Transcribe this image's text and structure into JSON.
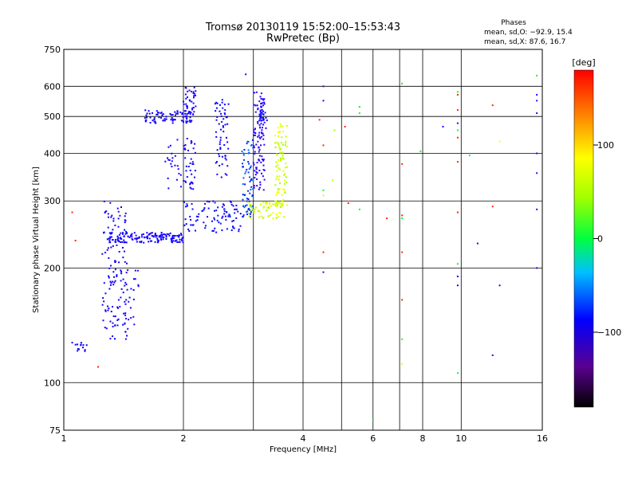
{
  "chart_data": {
    "type": "scatter",
    "title": "Tromsø 20130119 15:52:00–15:53:43",
    "subtitle": "RwPretec (Bp)",
    "phase_title": "Phases",
    "phase_line1": "mean, sd,O: −92.9, 15.4",
    "phase_line2": "mean, sd,X:  87.6, 16.7",
    "xlabel": "Frequency [MHz]",
    "ylabel": "Stationary phase Virtual Height [km]",
    "xscale": "log",
    "yscale": "log",
    "xlim": [
      1,
      16
    ],
    "ylim": [
      75,
      750
    ],
    "xticks": [
      1,
      2,
      4,
      6,
      8,
      10,
      16
    ],
    "xtick_labels": [
      "1",
      "2",
      "4",
      "6",
      "8",
      "10",
      "16"
    ],
    "xgrid": [
      1,
      2,
      3,
      4,
      5,
      6,
      7,
      8,
      10,
      16
    ],
    "yticks": [
      75,
      100,
      200,
      300,
      400,
      500,
      600,
      750
    ],
    "ytick_labels": [
      "75",
      "100",
      "200",
      "300",
      "400",
      "500",
      "600",
      "750"
    ],
    "ygrid": [
      100,
      200,
      300,
      400,
      500,
      600
    ],
    "grid": true,
    "colorbar": {
      "label": "[deg]",
      "min": -180,
      "max": 180,
      "ticks": [
        100,
        0,
        -100
      ],
      "tick_labels": [
        "100",
        "0",
        "−100"
      ]
    },
    "traces": [
      {
        "f": [
          1.05,
          1.15
        ],
        "h": [
          120,
          128
        ],
        "phase": -100,
        "n": 14
      },
      {
        "f": [
          1.25,
          1.45
        ],
        "h": [
          130,
          300
        ],
        "phase": -100,
        "n": 110
      },
      {
        "f": [
          1.3,
          1.55
        ],
        "h": [
          140,
          200
        ],
        "phase": -103,
        "n": 40
      },
      {
        "f": [
          1.3,
          2.0
        ],
        "h": [
          233,
          248
        ],
        "phase": -100,
        "n": 150
      },
      {
        "f": [
          2.0,
          2.8
        ],
        "h": [
          248,
          300
        ],
        "phase": -92,
        "n": 90
      },
      {
        "f": [
          1.6,
          2.1
        ],
        "h": [
          480,
          520
        ],
        "phase": -100,
        "n": 80
      },
      {
        "f": [
          2.0,
          2.15
        ],
        "h": [
          500,
          600
        ],
        "phase": -105,
        "n": 40
      },
      {
        "f": [
          1.8,
          2.15
        ],
        "h": [
          320,
          440
        ],
        "phase": -105,
        "n": 60
      },
      {
        "f": [
          2.4,
          2.6
        ],
        "h": [
          340,
          560
        ],
        "phase": -95,
        "n": 60
      },
      {
        "f": [
          2.8,
          3.0
        ],
        "h": [
          270,
          440
        ],
        "phase": -70,
        "n": 70
      },
      {
        "f": [
          3.0,
          3.2
        ],
        "h": [
          320,
          580
        ],
        "phase": -120,
        "n": 100
      },
      {
        "f": [
          3.1,
          3.25
        ],
        "h": [
          450,
          560
        ],
        "phase": -90,
        "n": 30
      },
      {
        "f": [
          2.9,
          3.6
        ],
        "h": [
          270,
          300
        ],
        "phase": 100,
        "n": 60
      },
      {
        "f": [
          3.4,
          3.65
        ],
        "h": [
          290,
          480
        ],
        "phase": 100,
        "n": 90
      }
    ],
    "points": [
      {
        "f": 1.05,
        "h": 280,
        "phase": 170
      },
      {
        "f": 1.07,
        "h": 236,
        "phase": 170
      },
      {
        "f": 1.22,
        "h": 110,
        "phase": 170
      },
      {
        "f": 2.87,
        "h": 645,
        "phase": -100
      },
      {
        "f": 4.5,
        "h": 600,
        "phase": -120
      },
      {
        "f": 4.5,
        "h": 550,
        "phase": -110
      },
      {
        "f": 4.5,
        "h": 420,
        "phase": 170
      },
      {
        "f": 4.4,
        "h": 490,
        "phase": 170
      },
      {
        "f": 4.75,
        "h": 340,
        "phase": 100
      },
      {
        "f": 4.5,
        "h": 320,
        "phase": 30
      },
      {
        "f": 4.5,
        "h": 310,
        "phase": 100
      },
      {
        "f": 4.5,
        "h": 220,
        "phase": 170
      },
      {
        "f": 4.5,
        "h": 195,
        "phase": -120
      },
      {
        "f": 4.8,
        "h": 460,
        "phase": 90
      },
      {
        "f": 5.1,
        "h": 470,
        "phase": 170
      },
      {
        "f": 5.55,
        "h": 530,
        "phase": 40
      },
      {
        "f": 5.55,
        "h": 510,
        "phase": 30
      },
      {
        "f": 5.55,
        "h": 285,
        "phase": 30
      },
      {
        "f": 5.2,
        "h": 296,
        "phase": 170
      },
      {
        "f": 6.5,
        "h": 270,
        "phase": 170
      },
      {
        "f": 6.0,
        "h": 80,
        "phase": 30
      },
      {
        "f": 7.1,
        "h": 610,
        "phase": 40
      },
      {
        "f": 7.1,
        "h": 375,
        "phase": 170
      },
      {
        "f": 7.1,
        "h": 275,
        "phase": 170
      },
      {
        "f": 7.1,
        "h": 270,
        "phase": 40
      },
      {
        "f": 7.1,
        "h": 220,
        "phase": 170
      },
      {
        "f": 7.1,
        "h": 165,
        "phase": 170
      },
      {
        "f": 7.1,
        "h": 130,
        "phase": 30
      },
      {
        "f": 7.1,
        "h": 112,
        "phase": 110
      },
      {
        "f": 7.9,
        "h": 405,
        "phase": 30
      },
      {
        "f": 9.0,
        "h": 470,
        "phase": -100
      },
      {
        "f": 9.8,
        "h": 580,
        "phase": 30
      },
      {
        "f": 9.8,
        "h": 570,
        "phase": 170
      },
      {
        "f": 9.8,
        "h": 520,
        "phase": 170
      },
      {
        "f": 9.8,
        "h": 480,
        "phase": -120
      },
      {
        "f": 9.8,
        "h": 460,
        "phase": 30
      },
      {
        "f": 9.8,
        "h": 440,
        "phase": 170
      },
      {
        "f": 9.8,
        "h": 380,
        "phase": 170
      },
      {
        "f": 9.8,
        "h": 280,
        "phase": 170
      },
      {
        "f": 9.8,
        "h": 205,
        "phase": 40
      },
      {
        "f": 9.8,
        "h": 190,
        "phase": -90
      },
      {
        "f": 9.8,
        "h": 180,
        "phase": -100
      },
      {
        "f": 9.8,
        "h": 106,
        "phase": 30
      },
      {
        "f": 10.5,
        "h": 395,
        "phase": 30
      },
      {
        "f": 11.0,
        "h": 232,
        "phase": -170
      },
      {
        "f": 12.0,
        "h": 535,
        "phase": 170
      },
      {
        "f": 12.0,
        "h": 290,
        "phase": 170
      },
      {
        "f": 12.0,
        "h": 118,
        "phase": -120
      },
      {
        "f": 12.5,
        "h": 180,
        "phase": -170
      },
      {
        "f": 12.5,
        "h": 430,
        "phase": 110
      },
      {
        "f": 15.5,
        "h": 640,
        "phase": 30
      },
      {
        "f": 15.5,
        "h": 570,
        "phase": -120
      },
      {
        "f": 15.5,
        "h": 550,
        "phase": -120
      },
      {
        "f": 15.5,
        "h": 510,
        "phase": -110
      },
      {
        "f": 15.5,
        "h": 400,
        "phase": -120
      },
      {
        "f": 15.5,
        "h": 355,
        "phase": -130
      },
      {
        "f": 15.5,
        "h": 285,
        "phase": -120
      },
      {
        "f": 15.5,
        "h": 200,
        "phase": -120
      }
    ]
  }
}
